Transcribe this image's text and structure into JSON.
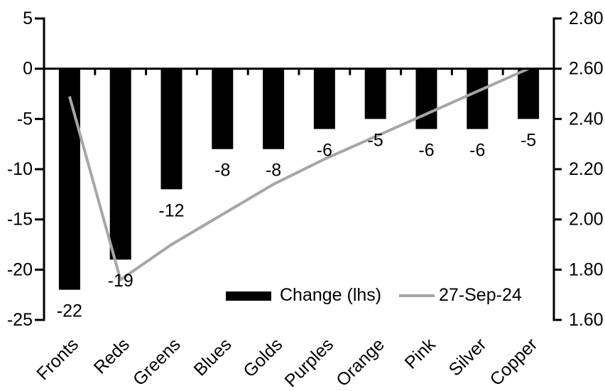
{
  "chart_data": {
    "type": "combo-bar-line",
    "title": "",
    "categories": [
      "Fronts",
      "Reds",
      "Greens",
      "Blues",
      "Golds",
      "Purples",
      "Orange",
      "Pink",
      "Silver",
      "Copper"
    ],
    "series": [
      {
        "name": "Change (lhs)",
        "type": "bar",
        "axis": "left",
        "color": "#000000",
        "values": [
          -22,
          -19,
          -12,
          -8,
          -8,
          -6,
          -5,
          -6,
          -6,
          -5
        ],
        "data_labels": [
          "-22",
          "-19",
          "-12",
          "-8",
          "-8",
          "-6",
          "-5",
          "-6",
          "-6",
          "-5"
        ]
      },
      {
        "name": "27-Sep-24",
        "type": "line",
        "axis": "right",
        "color": "#a6a6a6",
        "values": [
          2.49,
          1.76,
          1.9,
          2.02,
          2.14,
          2.24,
          2.33,
          2.42,
          2.51,
          2.6
        ]
      }
    ],
    "left_axis": {
      "min": -25,
      "max": 5,
      "step": 5,
      "tick_labels": [
        "5",
        "0",
        "-5",
        "-10",
        "-15",
        "-20",
        "-25"
      ]
    },
    "right_axis": {
      "min": 1.6,
      "max": 2.8,
      "step": 0.2,
      "tick_labels": [
        "2.80",
        "2.60",
        "2.40",
        "2.20",
        "2.00",
        "1.80",
        "1.60"
      ]
    },
    "legend": {
      "position": "inside-bottom-center",
      "items": [
        {
          "label": "Change (lhs)",
          "swatch": "bar",
          "color": "#000000"
        },
        {
          "label": "27-Sep-24",
          "swatch": "line",
          "color": "#a6a6a6"
        }
      ]
    },
    "grid": false,
    "axis_color": "#000000"
  }
}
